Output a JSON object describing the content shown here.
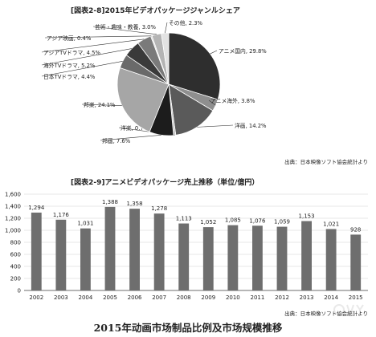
{
  "charts": {
    "pie": {
      "title": "[図表2-8]2015年ビデオパッケージジャンルシェア",
      "source": "出典：日本映像ソフト協会統計より"
    },
    "bar": {
      "title": "[図表2-9]アニメビデオパッケージ売上推移（単位/億円）",
      "source": "出典：日本映像ソフト協会統計より"
    }
  },
  "caption": "2015年动画市场制品比例及市场规模推移",
  "chart_data": [
    {
      "type": "pie",
      "title": "[図表2-8]2015年ビデオパッケージジャンルシェア",
      "slices": [
        {
          "label": "アニメ国内",
          "value": 29.8,
          "color": "#2e2e2e"
        },
        {
          "label": "アニメ海外",
          "value": 3.8,
          "color": "#8f8f8f"
        },
        {
          "label": "洋画",
          "value": 14.2,
          "color": "#5a5a5a"
        },
        {
          "label": "洋楽",
          "value": 0.7,
          "color": "#c4c4c4"
        },
        {
          "label": "邦画",
          "value": 7.6,
          "color": "#1c1c1c"
        },
        {
          "label": "邦楽",
          "value": 24.1,
          "color": "#a6a6a6"
        },
        {
          "label": "日本TVドラマ",
          "value": 4.4,
          "color": "#6a6a6a"
        },
        {
          "label": "海外TVドラマ",
          "value": 5.2,
          "color": "#3a3a3a"
        },
        {
          "label": "アジアTVドラマ",
          "value": 4.5,
          "color": "#7a7a7a"
        },
        {
          "label": "アジア映画",
          "value": 0.4,
          "color": "#d2d2d2"
        },
        {
          "label": "芸術・趣味・教養",
          "value": 3.0,
          "color": "#b4b4b4"
        },
        {
          "label": "その他",
          "value": 2.3,
          "color": "#e2e2e2"
        }
      ],
      "label_suffix": "%"
    },
    {
      "type": "bar",
      "title": "[図表2-9]アニメビデオパッケージ売上推移（単位/億円）",
      "categories": [
        "2002",
        "2003",
        "2004",
        "2005",
        "2006",
        "2007",
        "2008",
        "2009",
        "2010",
        "2011",
        "2012",
        "2013",
        "2014",
        "2015"
      ],
      "values": [
        1294,
        1176,
        1031,
        1388,
        1358,
        1278,
        1113,
        1052,
        1085,
        1076,
        1059,
        1153,
        1021,
        928
      ],
      "value_labels": [
        "1,294",
        "1,176",
        "1,031",
        "1,388",
        "1,358",
        "1,278",
        "1,113",
        "1,052",
        "1,085",
        "1,076",
        "1,059",
        "1,153",
        "1,021",
        "928"
      ],
      "ylim": [
        0,
        1600
      ],
      "yticks": [
        0,
        200,
        400,
        600,
        800,
        1000,
        1200,
        1400,
        1600
      ],
      "ytick_labels": [
        "0",
        "200",
        "400",
        "600",
        "800",
        "1,000",
        "1,200",
        "1,400",
        "1,600"
      ],
      "grid": true,
      "bar_color": "#6e6e6e"
    }
  ]
}
